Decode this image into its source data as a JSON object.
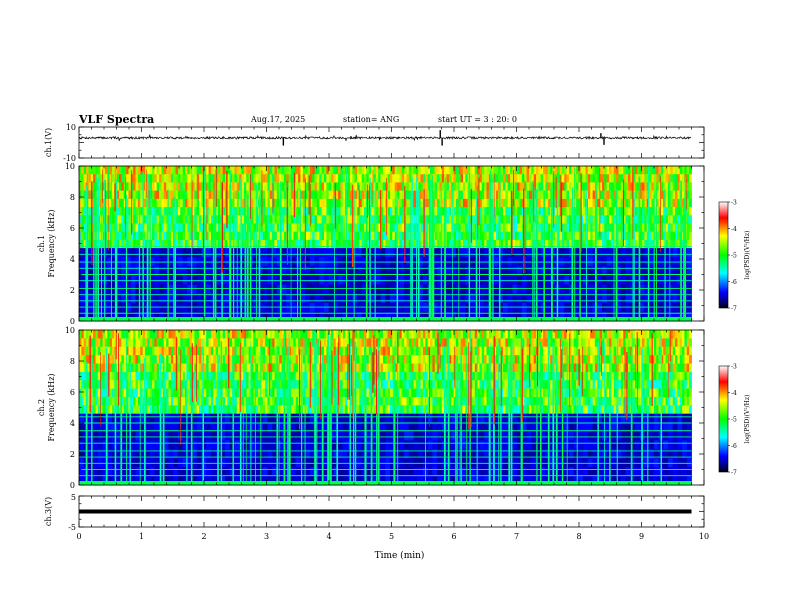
{
  "header": {
    "title": "VLF Spectra",
    "date": "Aug.17, 2025",
    "station": "station= ANG",
    "start_ut": "start  UT =   3 : 20: 0"
  },
  "chart_data": [
    {
      "type": "line",
      "ylabel": "ch.1(V)",
      "ylim": [
        -10,
        10
      ],
      "y_ticks": [
        "10",
        "-10"
      ],
      "x_range_min": [
        0,
        9.8
      ],
      "baseline_v": 3.0,
      "spikes": [
        {
          "t": 3.27,
          "v": -2.0
        },
        {
          "t": 4.35,
          "v": 4.0
        },
        {
          "t": 5.78,
          "v": 8.0
        },
        {
          "t": 5.81,
          "v": -2.0
        },
        {
          "t": 8.35,
          "v": 6.0
        },
        {
          "t": 8.4,
          "v": -1.5
        }
      ]
    },
    {
      "type": "heatmap",
      "ylabel": "ch.1",
      "ylabel2": "Frequency  (kHz)",
      "ylim": [
        0,
        10
      ],
      "y_ticks": [
        "0",
        "2",
        "4",
        "6",
        "8",
        "10"
      ],
      "x_range_min": [
        0,
        9.8
      ],
      "colorbar": {
        "ticks": [
          "-3",
          "-4",
          "-5",
          "-6",
          "-7"
        ],
        "range": [
          -7,
          -3
        ],
        "label": "log(PSD)(V²/Hz)"
      },
      "narrowband_lines_khz": [
        0.5,
        0.9,
        1.3,
        1.7,
        2.1,
        2.6,
        3.0,
        3.4,
        3.8,
        4.3,
        4.8
      ],
      "noise_band_khz": [
        0,
        4.7
      ],
      "seed": 11
    },
    {
      "type": "heatmap",
      "ylabel": "ch.2",
      "ylabel2": "Frequency  (kHz)",
      "ylim": [
        0,
        10
      ],
      "y_ticks": [
        "0",
        "2",
        "4",
        "6",
        "8",
        "10"
      ],
      "x_range_min": [
        0,
        9.8
      ],
      "colorbar": {
        "ticks": [
          "-3",
          "-4",
          "-5",
          "-6",
          "-7"
        ],
        "range": [
          -7,
          -3
        ],
        "label": "log(PSD)(V²/Hz)"
      },
      "narrowband_lines_khz": [
        0.6,
        1.0,
        1.4,
        1.8,
        2.2,
        2.7,
        3.1,
        3.5,
        4.0,
        4.4
      ],
      "noise_band_khz": [
        0,
        4.6
      ],
      "seed": 29
    },
    {
      "type": "line",
      "ylabel": "ch.3(V)",
      "ylim": [
        -5,
        5
      ],
      "y_ticks": [
        "5",
        "-5"
      ],
      "x_range_min": [
        0,
        9.8
      ],
      "baseline_v": 0.0
    }
  ],
  "x_axis": {
    "label": "Time  (min)",
    "ticks": [
      "0",
      "1",
      "2",
      "3",
      "4",
      "5",
      "6",
      "7",
      "8",
      "9",
      "10"
    ],
    "xlim": [
      0,
      10
    ]
  },
  "colors": {
    "axis": "#000000",
    "trace": "#000000"
  }
}
